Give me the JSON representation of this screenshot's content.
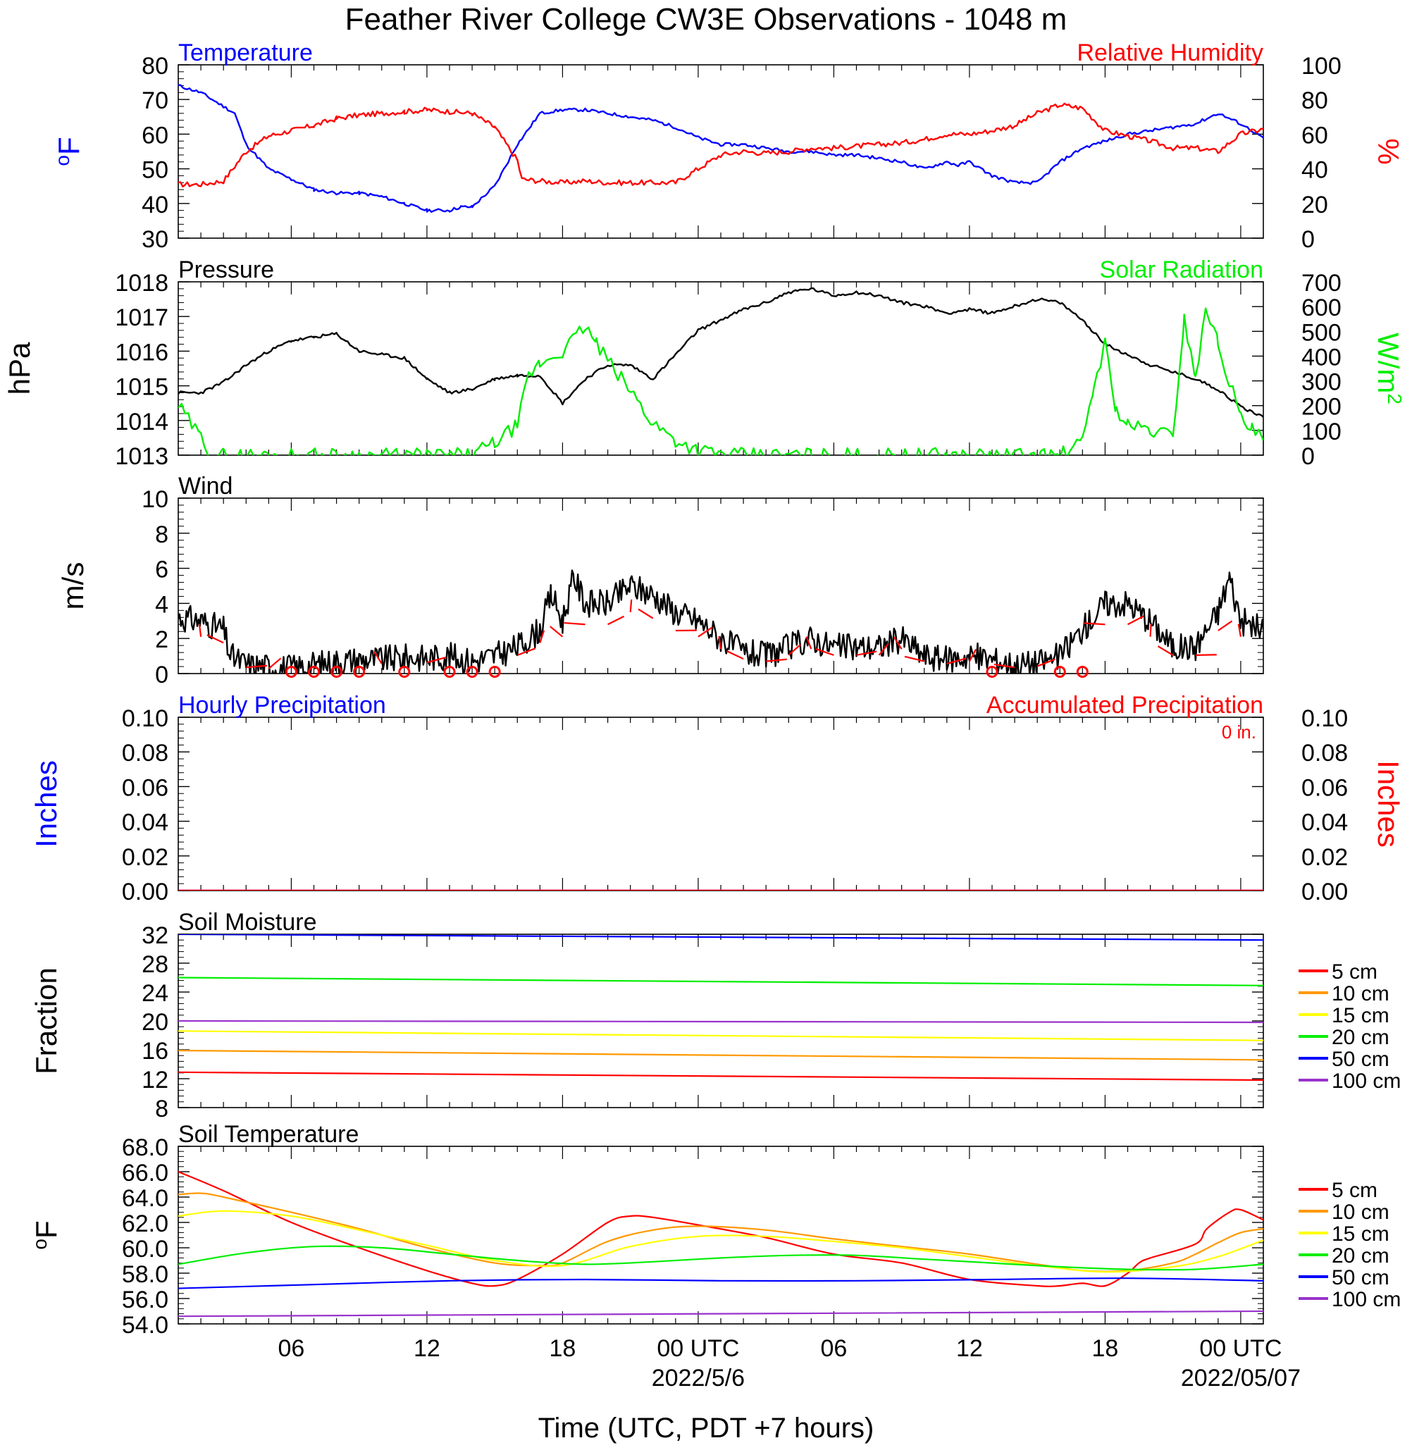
{
  "title": "Feather River College CW3E Observations - 1048 m",
  "x_axis": {
    "label": "Time (UTC, PDT +7 hours)",
    "tick_hours": [
      6,
      12,
      18,
      24,
      30,
      36,
      42,
      48
    ],
    "tick_labels": [
      "06",
      "12",
      "18",
      "00 UTC",
      "06",
      "12",
      "18",
      "00 UTC"
    ],
    "date_labels": [
      {
        "hour": 24,
        "text": "2022/5/6"
      },
      {
        "hour": 48,
        "text": "2022/05/07"
      }
    ],
    "range_hours": [
      1,
      49
    ]
  },
  "precip_total": "0 in.",
  "colors": {
    "temperature": "#0000ff",
    "humidity": "#ff0000",
    "pressure": "#000000",
    "solar": "#00ee00",
    "wind": "#000000",
    "barb": "#ff0000",
    "d5": "#ff0000",
    "d10": "#ff9900",
    "d15": "#ffff00",
    "d20": "#00ee00",
    "d50": "#0000ff",
    "d100": "#9933cc"
  },
  "chart_data": [
    {
      "type": "line",
      "panel": "temperature-humidity",
      "left_title": "Temperature",
      "right_title": "Relative Humidity",
      "ylabel_left": "oF",
      "ylabel_right": "%",
      "ylim_left": [
        30,
        80
      ],
      "ylim_right": [
        0,
        100
      ],
      "yticks_left": [
        30,
        40,
        50,
        60,
        70,
        80
      ],
      "yticks_right": [
        0,
        20,
        40,
        60,
        80,
        100
      ],
      "series": [
        {
          "name": "Temperature",
          "axis": "left",
          "color": "#0000ff",
          "x": [
            1,
            2,
            3,
            3.5,
            4,
            5,
            6,
            7,
            8,
            9,
            10,
            11,
            12,
            13,
            13.5,
            14,
            15,
            16,
            17,
            18,
            19,
            20,
            21,
            22,
            23,
            24,
            25,
            26,
            27,
            28,
            29,
            30,
            31,
            32,
            33,
            34,
            35,
            35.5,
            36,
            37,
            38,
            39,
            40,
            41,
            42,
            43,
            44,
            45,
            46,
            47,
            48,
            49
          ],
          "y": [
            74,
            72,
            68,
            66,
            57,
            50,
            47,
            44,
            43,
            43,
            42,
            40,
            38,
            38,
            39,
            39,
            45,
            57,
            66,
            67,
            67,
            66,
            65,
            64,
            62,
            59,
            57,
            57,
            56,
            55,
            55,
            54,
            54,
            53,
            52,
            50,
            52,
            51,
            52,
            48,
            46,
            46,
            52,
            56,
            58,
            60,
            61,
            62,
            63,
            66,
            63,
            59
          ]
        },
        {
          "name": "Relative Humidity",
          "axis": "right",
          "color": "#ff0000",
          "x": [
            1,
            2,
            3,
            4,
            5,
            6,
            7,
            8,
            9,
            10,
            11,
            12,
            13,
            14,
            15,
            16,
            16.2,
            17,
            18,
            19,
            20,
            21,
            22,
            23,
            24,
            25,
            26,
            27,
            28,
            29,
            30,
            31,
            32,
            33,
            34,
            35,
            36,
            37,
            38,
            39,
            40,
            41,
            42,
            43,
            44,
            45,
            46,
            47,
            48,
            49
          ],
          "y": [
            31,
            31,
            33,
            50,
            59,
            62,
            65,
            69,
            71,
            72,
            73,
            74,
            73,
            72,
            64,
            45,
            34,
            33,
            32,
            33,
            32,
            32,
            32,
            32,
            40,
            48,
            50,
            49,
            50,
            52,
            52,
            53,
            54,
            55,
            57,
            60,
            60,
            62,
            65,
            72,
            77,
            75,
            62,
            59,
            56,
            52,
            52,
            50,
            60,
            63
          ]
        }
      ]
    },
    {
      "type": "line",
      "panel": "pressure-solar",
      "left_title": "Pressure",
      "right_title": "Solar Radiation",
      "ylabel_left": "hPa",
      "ylabel_right": "W/m2",
      "ylim_left": [
        1013.0,
        1018.0
      ],
      "ylim_right": [
        0,
        700
      ],
      "yticks_left": [
        1013.0,
        1014.0,
        1015.0,
        1016.0,
        1017.0,
        1018.0
      ],
      "yticks_right": [
        0,
        100,
        200,
        300,
        400,
        500,
        600,
        700
      ],
      "series": [
        {
          "name": "Pressure",
          "axis": "left",
          "color": "#000000",
          "x": [
            1,
            2,
            3,
            4,
            5,
            6,
            7,
            8,
            9,
            10,
            11,
            12,
            13,
            14,
            15,
            16,
            17,
            18,
            19,
            20,
            21,
            22,
            23,
            24,
            25,
            26,
            27,
            28,
            29,
            30,
            31,
            32,
            33,
            34,
            35,
            36,
            37,
            38,
            39,
            40,
            41,
            42,
            43,
            44,
            45,
            46,
            47,
            48,
            49
          ],
          "y": [
            1014.8,
            1014.8,
            1015.1,
            1015.6,
            1016.0,
            1016.3,
            1016.4,
            1016.5,
            1016.0,
            1015.9,
            1015.8,
            1015.2,
            1014.8,
            1014.9,
            1015.2,
            1015.3,
            1015.3,
            1014.5,
            1015.2,
            1015.6,
            1015.6,
            1015.2,
            1015.9,
            1016.6,
            1016.9,
            1017.2,
            1017.4,
            1017.7,
            1017.8,
            1017.6,
            1017.7,
            1017.6,
            1017.4,
            1017.3,
            1017.1,
            1017.2,
            1017.1,
            1017.3,
            1017.5,
            1017.4,
            1016.9,
            1016.2,
            1015.9,
            1015.6,
            1015.4,
            1015.2,
            1014.9,
            1014.4,
            1014.1
          ]
        },
        {
          "name": "Solar Radiation",
          "axis": "right",
          "color": "#00ee00",
          "x": [
            1,
            2,
            2.5,
            3,
            14,
            15,
            16,
            16.5,
            17,
            18,
            19,
            19.5,
            20,
            21,
            22,
            23,
            24,
            25,
            26,
            27,
            40,
            41,
            41.5,
            42,
            42.5,
            43,
            44,
            45,
            45.5,
            46,
            46.5,
            47,
            47.5,
            48,
            48.5,
            49
          ],
          "y": [
            200,
            70,
            5,
            0,
            0,
            50,
            120,
            320,
            370,
            420,
            520,
            450,
            380,
            260,
            130,
            60,
            20,
            5,
            0,
            0,
            0,
            50,
            280,
            450,
            180,
            120,
            100,
            80,
            550,
            320,
            600,
            450,
            300,
            150,
            100,
            60
          ]
        }
      ]
    },
    {
      "type": "line",
      "panel": "wind",
      "left_title": "Wind",
      "ylabel_left": "m/s",
      "ylim_left": [
        0,
        10
      ],
      "yticks_left": [
        0,
        2,
        4,
        6,
        8,
        10
      ],
      "calm_markers_hours": [
        6,
        7,
        8,
        9,
        11,
        13,
        14,
        15,
        37,
        40,
        41
      ],
      "series": [
        {
          "name": "Wind",
          "axis": "left",
          "color": "#000000",
          "x": [
            1,
            2,
            3,
            3.3,
            4,
            5,
            6,
            7,
            8,
            9,
            10,
            11,
            12,
            13,
            14,
            15,
            16,
            17,
            17.5,
            18,
            18.5,
            19,
            20,
            21,
            22,
            23,
            24,
            25,
            26,
            27,
            28,
            29,
            30,
            31,
            32,
            33,
            34,
            35,
            36,
            37,
            38,
            39,
            40,
            41,
            42,
            43,
            44,
            45,
            46,
            47,
            47.5,
            48,
            49
          ],
          "y": [
            3.2,
            3.0,
            2.5,
            1.0,
            0.5,
            0.4,
            0.3,
            0.5,
            0.7,
            0.8,
            0.8,
            0.9,
            0.9,
            1.0,
            0.7,
            1.0,
            1.5,
            2.5,
            4.5,
            3.0,
            5.5,
            4.0,
            4.0,
            5.0,
            4.5,
            3.5,
            3.0,
            2.0,
            1.2,
            1.0,
            1.5,
            2.0,
            1.5,
            1.5,
            1.5,
            2.0,
            1.0,
            0.8,
            1.0,
            0.8,
            0.5,
            0.6,
            1.0,
            2.5,
            4.0,
            4.0,
            3.0,
            1.5,
            1.5,
            3.5,
            5.5,
            3.0,
            2.5
          ]
        }
      ]
    },
    {
      "type": "line",
      "panel": "precipitation",
      "left_title": "Hourly Precipitation",
      "right_title": "Accumulated Precipitation",
      "ylabel_left": "Inches",
      "ylabel_right": "Inches",
      "ylim_left": [
        0,
        0.1
      ],
      "ylim_right": [
        0,
        0.1
      ],
      "yticks_left": [
        "0.00",
        "0.02",
        "0.04",
        "0.06",
        "0.08",
        "0.10"
      ],
      "yticks_right": [
        "0.00",
        "0.02",
        "0.04",
        "0.06",
        "0.08",
        "0.10"
      ],
      "series": [
        {
          "name": "Hourly Precipitation",
          "axis": "left",
          "color": "#0000ff",
          "x": [
            1,
            49
          ],
          "y": [
            0,
            0
          ]
        },
        {
          "name": "Accumulated Precipitation",
          "axis": "right",
          "color": "#ff0000",
          "x": [
            1,
            49
          ],
          "y": [
            0,
            0
          ]
        }
      ]
    },
    {
      "type": "line",
      "panel": "soil-moisture",
      "left_title": "Soil Moisture",
      "ylabel_left": "Fraction",
      "ylim_left": [
        8,
        32
      ],
      "yticks_left": [
        8,
        12,
        16,
        20,
        24,
        28,
        32
      ],
      "series": [
        {
          "name": "5 cm",
          "color": "#ff0000",
          "x": [
            1,
            49
          ],
          "y": [
            12.9,
            11.8
          ]
        },
        {
          "name": "10 cm",
          "color": "#ff9900",
          "x": [
            1,
            49
          ],
          "y": [
            15.9,
            14.6
          ]
        },
        {
          "name": "15 cm",
          "color": "#ffff00",
          "x": [
            1,
            49
          ],
          "y": [
            18.6,
            17.3
          ]
        },
        {
          "name": "20 cm",
          "color": "#00ee00",
          "x": [
            1,
            49
          ],
          "y": [
            26.0,
            24.9
          ]
        },
        {
          "name": "50 cm",
          "color": "#0000ff",
          "x": [
            1,
            49
          ],
          "y": [
            32.0,
            31.2
          ]
        },
        {
          "name": "100 cm",
          "color": "#9933cc",
          "x": [
            1,
            49
          ],
          "y": [
            20.0,
            19.8
          ]
        }
      ]
    },
    {
      "type": "line",
      "panel": "soil-temperature",
      "left_title": "Soil Temperature",
      "ylabel_left": "oF",
      "ylim_left": [
        54.0,
        68.0
      ],
      "yticks_left": [
        "54.0",
        "56.0",
        "58.0",
        "60.0",
        "62.0",
        "64.0",
        "66.0",
        "68.0"
      ],
      "series": [
        {
          "name": "5 cm",
          "color": "#ff0000",
          "x": [
            1,
            3,
            6,
            9,
            12,
            14,
            15,
            16,
            18,
            20,
            21,
            22,
            24,
            27,
            30,
            33,
            36,
            39,
            40,
            41,
            42,
            43,
            43.5,
            44,
            46,
            46.5,
            47.5,
            48,
            49
          ],
          "y": [
            66.0,
            64.5,
            62.0,
            60.0,
            58.2,
            57.2,
            57.0,
            57.5,
            59.5,
            62.0,
            62.5,
            62.4,
            61.8,
            60.8,
            59.5,
            58.8,
            57.5,
            57.0,
            57.0,
            57.2,
            57.0,
            58.0,
            58.8,
            59.2,
            60.3,
            61.5,
            62.8,
            63.0,
            62.2
          ]
        },
        {
          "name": "10 cm",
          "color": "#ff9900",
          "x": [
            1,
            2,
            3,
            6,
            9,
            12,
            15,
            17,
            18,
            20,
            22,
            24,
            27,
            30,
            33,
            36,
            39,
            41,
            43,
            45,
            46,
            47,
            48,
            49
          ],
          "y": [
            64.2,
            64.3,
            64.0,
            62.8,
            61.5,
            60.0,
            58.8,
            58.6,
            58.8,
            60.5,
            61.4,
            61.7,
            61.4,
            60.7,
            60.1,
            59.5,
            58.7,
            58.2,
            58.2,
            58.8,
            59.5,
            60.4,
            61.2,
            61.5
          ]
        },
        {
          "name": "15 cm",
          "color": "#ffff00",
          "x": [
            1,
            3,
            6,
            9,
            12,
            15,
            18,
            21,
            24,
            27,
            30,
            33,
            36,
            39,
            42,
            45,
            47,
            49
          ],
          "y": [
            62.5,
            62.9,
            62.5,
            61.4,
            60.2,
            59.0,
            58.6,
            60.1,
            60.9,
            60.9,
            60.5,
            60.0,
            59.3,
            58.6,
            58.1,
            58.5,
            59.3,
            60.6
          ]
        },
        {
          "name": "20 cm",
          "color": "#00ee00",
          "x": [
            1,
            4,
            7,
            10,
            13,
            16,
            19,
            22,
            25,
            28,
            31,
            34,
            37,
            40,
            43,
            46,
            49
          ],
          "y": [
            58.7,
            59.6,
            60.1,
            60.0,
            59.5,
            59.0,
            58.7,
            58.9,
            59.2,
            59.4,
            59.4,
            59.1,
            58.8,
            58.5,
            58.3,
            58.3,
            58.7
          ]
        },
        {
          "name": "50 cm",
          "color": "#0000ff",
          "x": [
            1,
            7,
            13,
            19,
            25,
            31,
            37,
            43,
            49
          ],
          "y": [
            56.8,
            57.1,
            57.4,
            57.5,
            57.4,
            57.4,
            57.5,
            57.6,
            57.4
          ]
        },
        {
          "name": "100 cm",
          "color": "#9933cc",
          "x": [
            1,
            49
          ],
          "y": [
            54.6,
            55.0
          ]
        }
      ]
    }
  ]
}
